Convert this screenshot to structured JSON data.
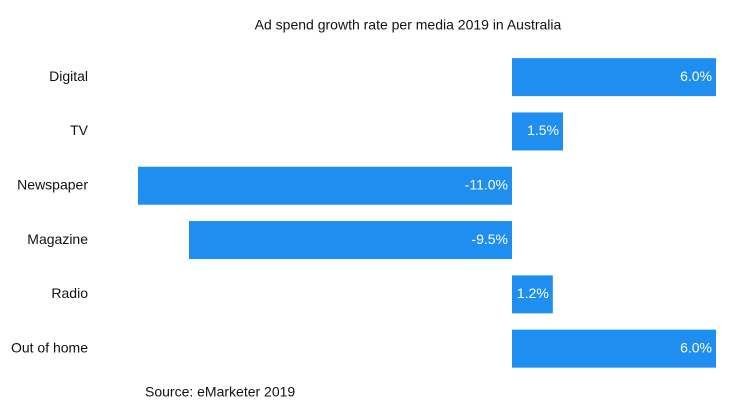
{
  "chart_data": {
    "type": "hbar",
    "title": "Ad spend growth rate per media 2019 in Australia",
    "categories": [
      "Digital",
      "TV",
      "Newspaper",
      "Magazine",
      "Radio",
      "Out of home"
    ],
    "values": [
      6.0,
      1.5,
      -11.0,
      -9.5,
      1.2,
      6.0
    ],
    "value_labels": [
      "6.0%",
      "1.5%",
      "-11.0%",
      "-9.5%",
      "1.2%",
      "6.0%"
    ],
    "color": "#1f8ef1",
    "source": "Source: eMarketer 2019"
  }
}
